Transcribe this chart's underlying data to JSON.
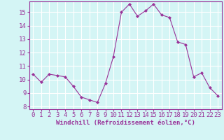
{
  "x": [
    0,
    1,
    2,
    3,
    4,
    5,
    6,
    7,
    8,
    9,
    10,
    11,
    12,
    13,
    14,
    15,
    16,
    17,
    18,
    19,
    20,
    21,
    22,
    23
  ],
  "y": [
    10.4,
    9.8,
    10.4,
    10.3,
    10.2,
    9.5,
    8.7,
    8.5,
    8.3,
    9.7,
    11.7,
    15.0,
    15.6,
    14.7,
    15.1,
    15.6,
    14.8,
    14.6,
    12.8,
    12.6,
    10.2,
    10.5,
    9.4,
    8.8
  ],
  "line_color": "#993399",
  "marker": "D",
  "marker_size": 2,
  "background_color": "#d4f5f5",
  "grid_color": "#ffffff",
  "xlabel": "Windchill (Refroidissement éolien,°C)",
  "xlabel_color": "#993399",
  "tick_color": "#993399",
  "label_color": "#993399",
  "spine_color": "#993399",
  "ylim": [
    7.8,
    15.8
  ],
  "yticks": [
    8,
    9,
    10,
    11,
    12,
    13,
    14,
    15
  ],
  "xlim": [
    -0.5,
    23.5
  ],
  "xticks": [
    0,
    1,
    2,
    3,
    4,
    5,
    6,
    7,
    8,
    9,
    10,
    11,
    12,
    13,
    14,
    15,
    16,
    17,
    18,
    19,
    20,
    21,
    22,
    23
  ],
  "tick_fontsize": 6.5,
  "xlabel_fontsize": 6.5
}
